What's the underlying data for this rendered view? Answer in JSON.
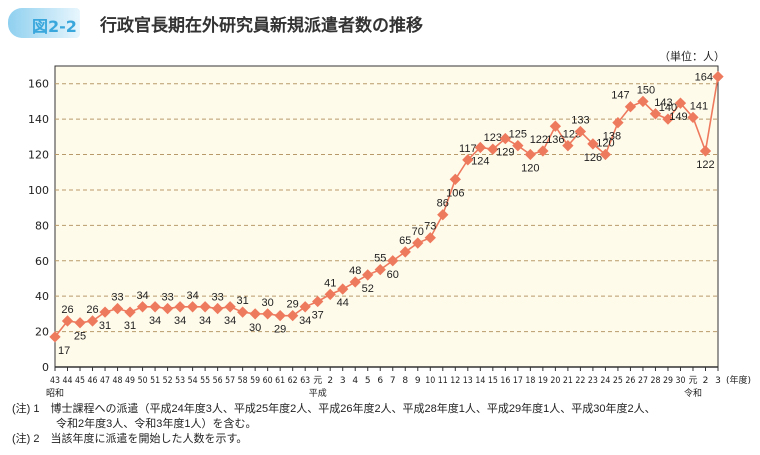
{
  "figure_number": "図2-2",
  "title": "行政官長期在外研究員新規派遣者数の推移",
  "unit": "（単位：人）",
  "chart_data": {
    "type": "line",
    "title": "行政官長期在外研究員新規派遣者数の推移",
    "xlabel": "(年度)",
    "ylabel": "",
    "ylim": [
      0,
      170
    ],
    "yticks": [
      0,
      20,
      40,
      60,
      80,
      100,
      120,
      140,
      160
    ],
    "grid": true,
    "era_labels": [
      {
        "at": "43",
        "label": "昭和"
      },
      {
        "at": "元",
        "index": 21,
        "label": "平成"
      },
      {
        "at": "元",
        "index": 51,
        "label": "令和"
      }
    ],
    "categories": [
      "43",
      "44",
      "45",
      "46",
      "47",
      "48",
      "49",
      "50",
      "51",
      "52",
      "53",
      "54",
      "55",
      "56",
      "57",
      "58",
      "59",
      "60",
      "61",
      "62",
      "63",
      "元",
      "2",
      "3",
      "4",
      "5",
      "6",
      "7",
      "8",
      "9",
      "10",
      "11",
      "12",
      "13",
      "14",
      "15",
      "16",
      "17",
      "18",
      "19",
      "20",
      "21",
      "22",
      "23",
      "24",
      "25",
      "26",
      "27",
      "28",
      "29",
      "30",
      "元",
      "2",
      "3"
    ],
    "values": [
      17,
      26,
      25,
      26,
      31,
      33,
      31,
      34,
      34,
      33,
      34,
      34,
      34,
      33,
      34,
      31,
      30,
      30,
      29,
      29,
      34,
      37,
      41,
      44,
      48,
      52,
      55,
      60,
      65,
      70,
      73,
      86,
      106,
      117,
      124,
      123,
      129,
      125,
      120,
      122,
      136,
      125,
      133,
      126,
      120,
      138,
      147,
      150,
      143,
      140,
      149,
      141,
      122,
      164
    ],
    "line_color": "#ee7a5e",
    "plot_background": "#fffbeb"
  },
  "notes": [
    "(注) 1　博士課程への派遣（平成24年度3人、平成25年度2人、平成26年度2人、平成28年度1人、平成29年度1人、平成30年度2人、",
    "　　　　令和2年度3人、令和3年度1人）を含む。",
    "(注) 2　当該年度に派遣を開始した人数を示す。"
  ]
}
